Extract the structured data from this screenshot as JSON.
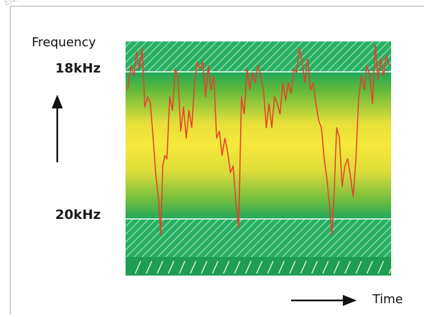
{
  "watermark": "EN...",
  "diagram": {
    "y_axis_label": "Frequency",
    "x_axis_label": "Time",
    "band_labels": {
      "upper": "18kHz",
      "lower": "20kHz"
    },
    "colors": {
      "band_edge_green": "#1fa85a",
      "band_middle_yellow": "#f5e63a",
      "hatch_green": "#27b064",
      "signal_line": "#e8402a",
      "threshold_line": "#ffffff",
      "arrow": "#111111"
    },
    "icons": [
      "up-arrow-icon",
      "right-arrow-icon"
    ]
  }
}
